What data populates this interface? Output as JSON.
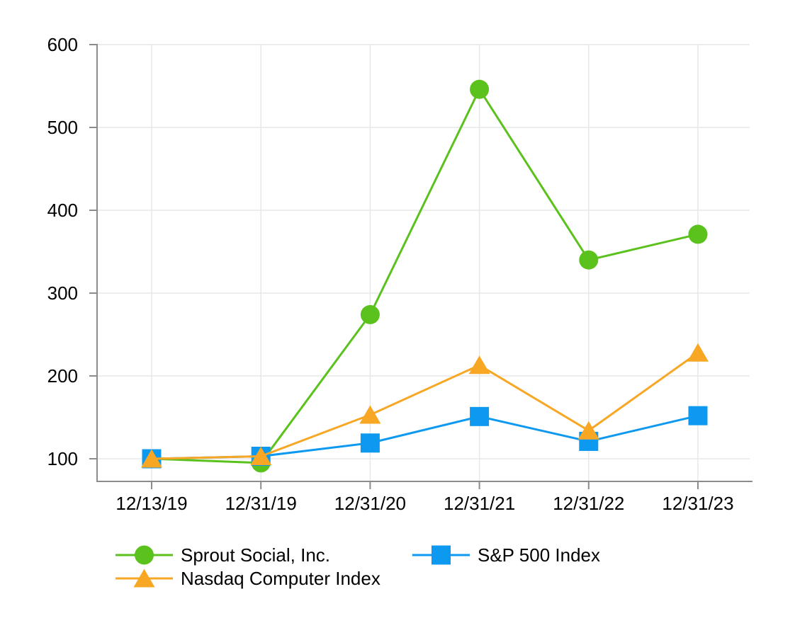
{
  "chart_data": {
    "type": "line",
    "x_tick_labels": [
      "12/13/19",
      "12/31/19",
      "12/31/20",
      "12/31/21",
      "12/31/22",
      "12/31/23"
    ],
    "y_ticks": [
      100,
      200,
      300,
      400,
      500,
      600
    ],
    "y_tick_labels": [
      "100",
      "200",
      "300",
      "400",
      "500",
      "600"
    ],
    "ylim": [
      73,
      600
    ],
    "grid": true,
    "legend_position": "bottom",
    "axis_color": "#8C8C8C",
    "gridline_color": "#E7E7E7",
    "text_color": "#000000",
    "background_color": "#FFFFFF",
    "series": [
      {
        "name": "Sprout Social, Inc.",
        "marker": "circle",
        "color": "#5BC11C",
        "values": [
          100,
          95,
          274,
          546,
          340,
          371
        ]
      },
      {
        "name": "S&P 500 Index",
        "marker": "square",
        "color": "#0E99F0",
        "values": [
          100,
          103,
          119,
          151,
          121,
          152
        ]
      },
      {
        "name": "Nasdaq Computer Index",
        "marker": "triangle",
        "color": "#F7A723",
        "values": [
          100,
          103,
          153,
          213,
          134,
          228
        ]
      }
    ]
  }
}
